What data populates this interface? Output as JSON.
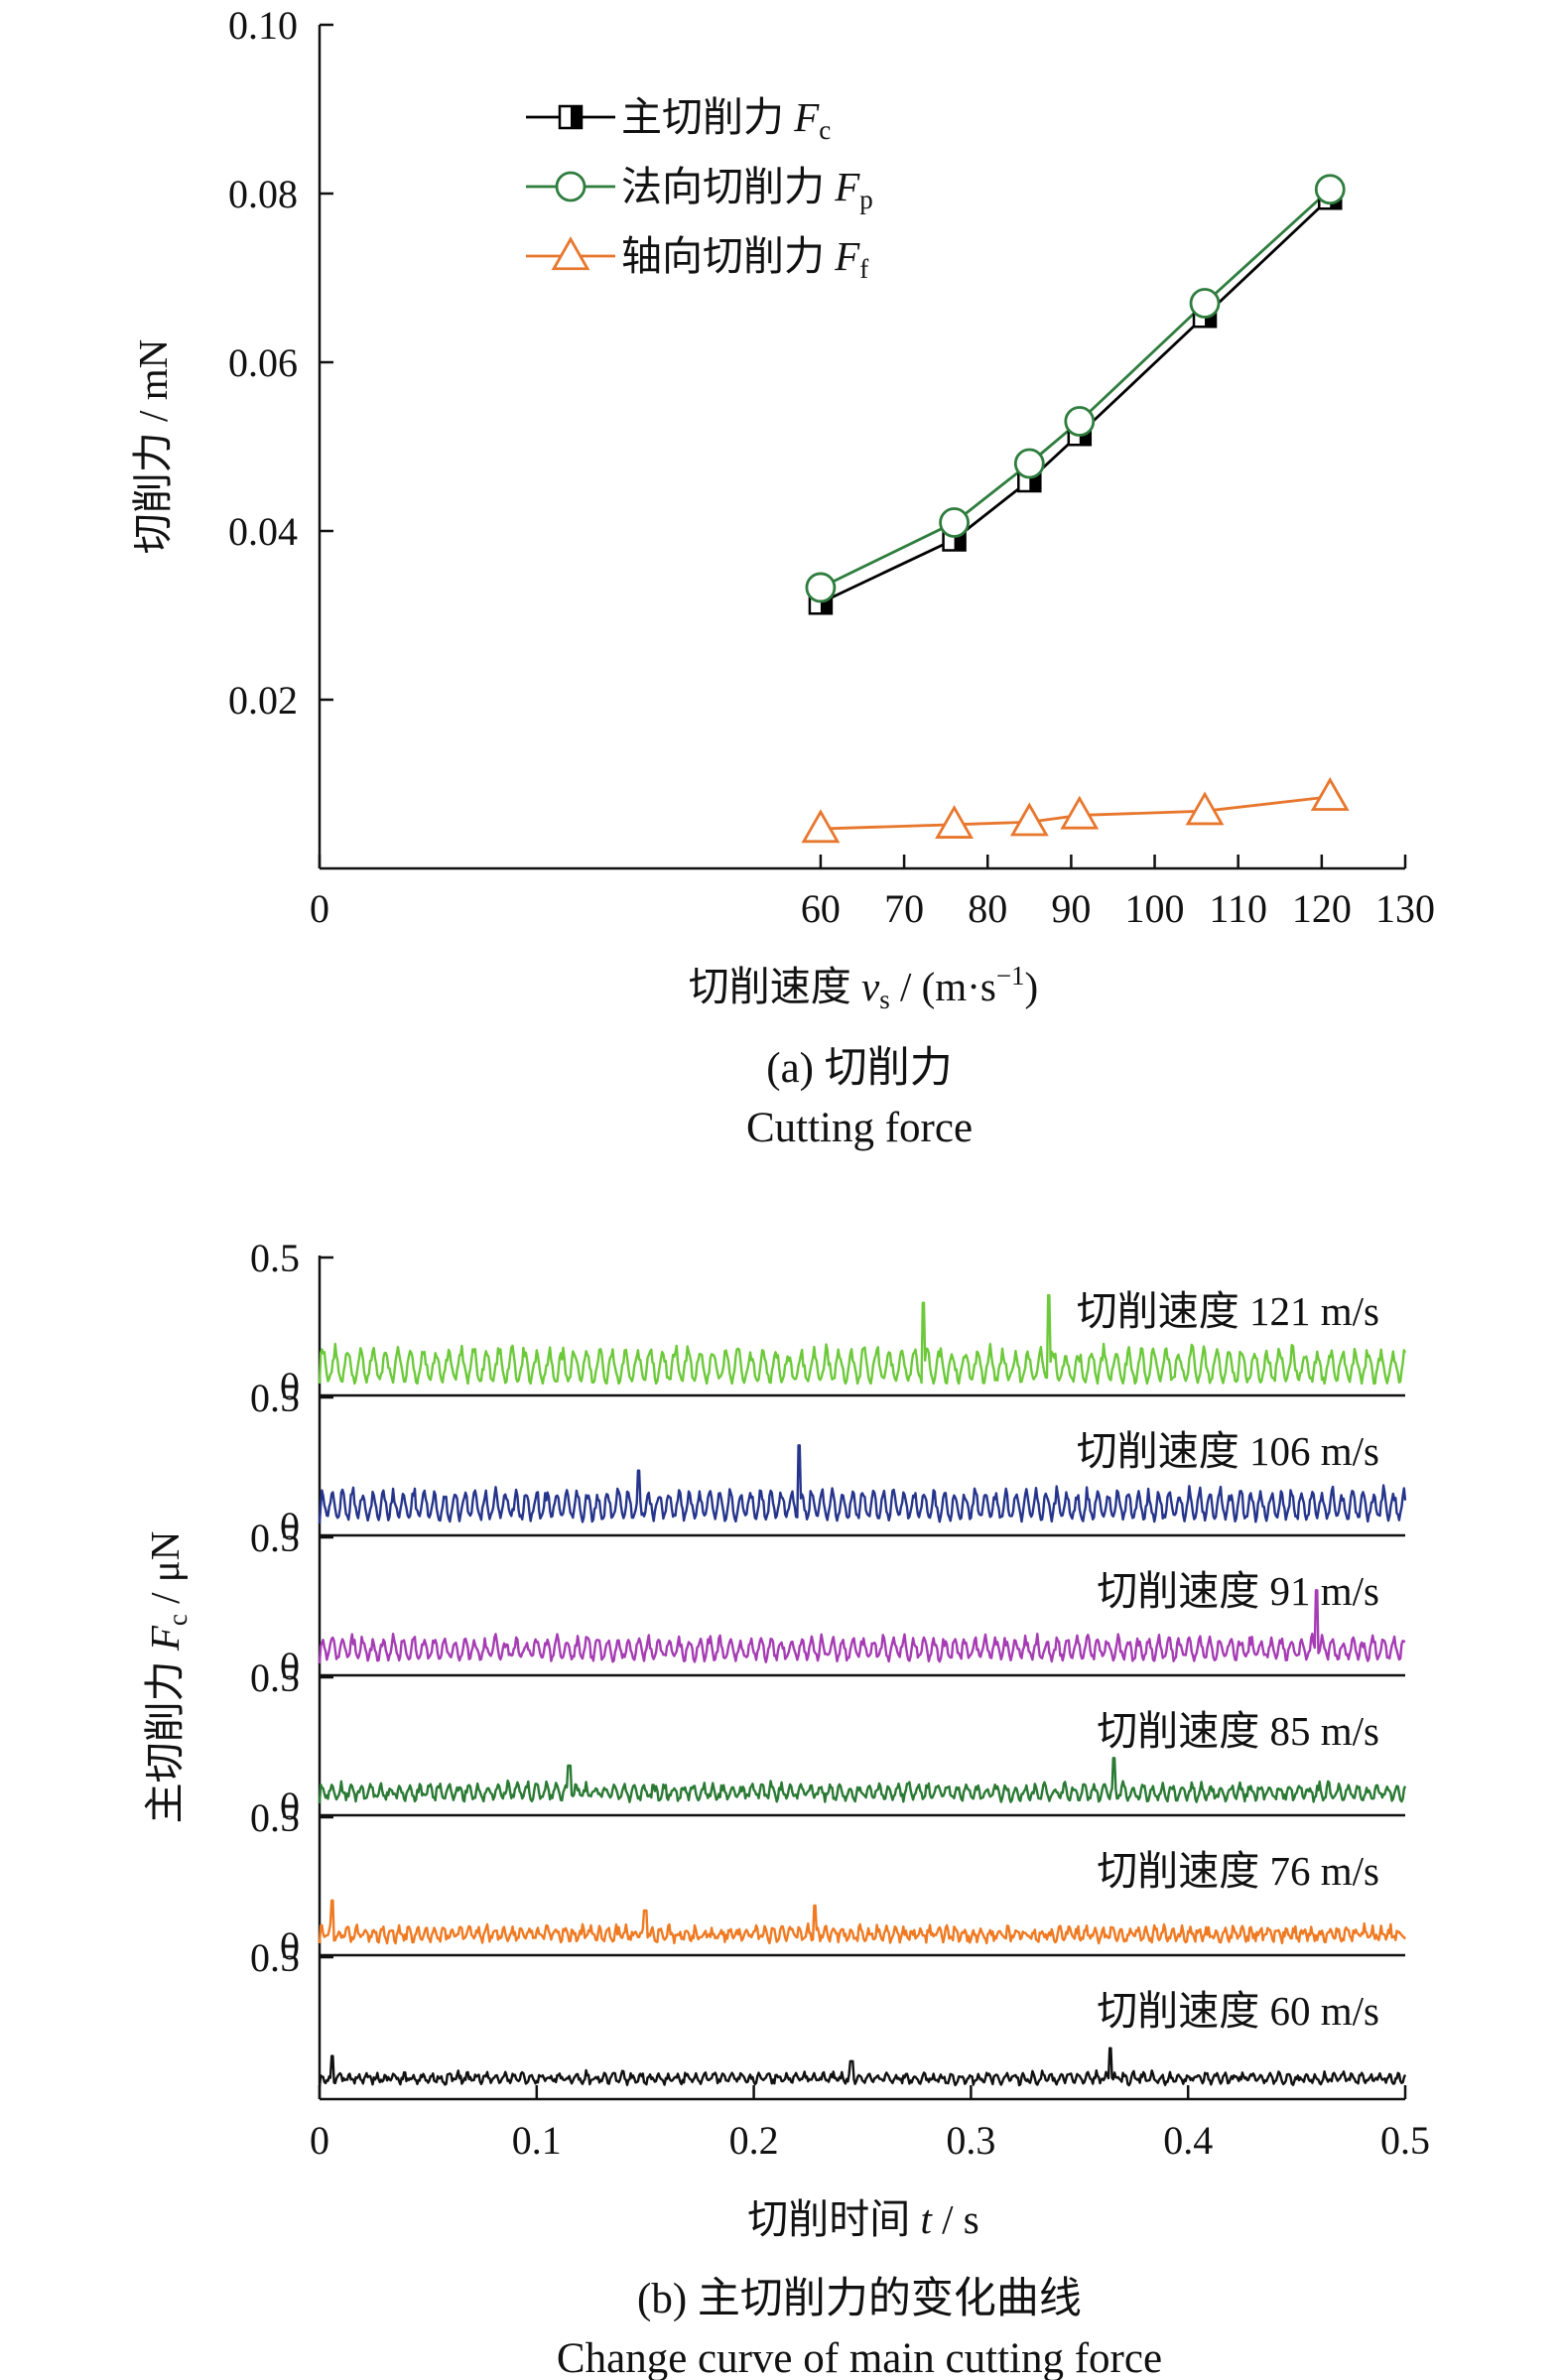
{
  "chart_data": [
    {
      "type": "line",
      "panel_id": "a",
      "caption_cn": "(a) 切削力",
      "caption_en": "Cutting force",
      "xlabel_main": "切削速度 ",
      "xlabel_var": "v",
      "xlabel_sub": "s",
      "xlabel_unit": " / (m·s",
      "xlabel_sup": "−1",
      "xlabel_close": ")",
      "ylabel": "切削力 / mN",
      "xlim": [
        0,
        130
      ],
      "ylim": [
        0,
        0.1
      ],
      "xticks": [
        0,
        60,
        70,
        80,
        90,
        100,
        110,
        120,
        130
      ],
      "xtick_labels": [
        "0",
        "60",
        "70",
        "80",
        "90",
        "100",
        "110",
        "120",
        "130"
      ],
      "yticks": [
        0.02,
        0.04,
        0.06,
        0.08,
        0.1
      ],
      "ytick_labels": [
        "0.02",
        "0.04",
        "0.06",
        "0.08",
        "0.10"
      ],
      "legend_position": "top-left",
      "x": [
        60,
        76,
        85,
        91,
        106,
        121
      ],
      "series": [
        {
          "name": "主切削力 ",
          "sym": "F",
          "sub": "c",
          "marker": "half-square",
          "color": "#000000",
          "values": [
            0.0315,
            0.039,
            0.046,
            0.0515,
            0.0655,
            0.0795
          ]
        },
        {
          "name": "法向切削力 ",
          "sym": "F",
          "sub": "p",
          "marker": "circle",
          "color": "#2e7d3e",
          "values": [
            0.0333,
            0.041,
            0.048,
            0.053,
            0.067,
            0.0805
          ]
        },
        {
          "name": "轴向切削力 ",
          "sym": "F",
          "sub": "f",
          "marker": "triangle",
          "color": "#e8772e",
          "values": [
            0.0047,
            0.0052,
            0.0055,
            0.0063,
            0.0068,
            0.0085
          ]
        }
      ]
    },
    {
      "type": "line",
      "panel_id": "b",
      "caption_cn": "(b) 主切削力的变化曲线",
      "caption_en": "Change curve of main cutting force",
      "xlabel_main": "切削时间 ",
      "xlabel_var": "t",
      "xlabel_unit": " / s",
      "ylabel_main": "主切削力 ",
      "ylabel_var": "F",
      "ylabel_sub": "c",
      "ylabel_unit": " / μN",
      "xlim": [
        0,
        0.5
      ],
      "ylim_each": [
        0,
        0.5
      ],
      "xticks": [
        0,
        0.1,
        0.2,
        0.3,
        0.4,
        0.5
      ],
      "xtick_labels": [
        "0",
        "0.1",
        "0.2",
        "0.3",
        "0.4",
        "0.5"
      ],
      "ytick_labels": [
        "0",
        "0.5"
      ],
      "series": [
        {
          "label": "切削速度 121 m/s",
          "speed": 121,
          "color": "#6cc93a",
          "base": 0.01,
          "amp": 0.14,
          "period": 0.0058,
          "noise": 0.03,
          "spikes": [
            [
              0.278,
              0.32
            ],
            [
              0.336,
              0.35
            ]
          ]
        },
        {
          "label": "切削速度 106 m/s",
          "speed": 106,
          "color": "#26358c",
          "base": 0.02,
          "amp": 0.12,
          "period": 0.0047,
          "noise": 0.03,
          "spikes": [
            [
              0.147,
              0.21
            ],
            [
              0.221,
              0.31
            ]
          ]
        },
        {
          "label": "切削速度 91 m/s",
          "speed": 91,
          "color": "#a63cb4",
          "base": 0.02,
          "amp": 0.09,
          "period": 0.0047,
          "noise": 0.03,
          "spikes": [
            [
              0.459,
              0.29
            ]
          ]
        },
        {
          "label": "切削速度 85 m/s",
          "speed": 85,
          "color": "#2a7a34",
          "base": 0.02,
          "amp": 0.06,
          "period": 0.0045,
          "noise": 0.03,
          "spikes": [
            [
              0.366,
              0.18
            ],
            [
              0.115,
              0.15
            ]
          ]
        },
        {
          "label": "切削速度 76 m/s",
          "speed": 76,
          "color": "#f07a22",
          "base": 0.015,
          "amp": 0.05,
          "period": 0.004,
          "noise": 0.035,
          "spikes": [
            [
              0.006,
              0.17
            ],
            [
              0.228,
              0.15
            ],
            [
              0.15,
              0.13
            ]
          ]
        },
        {
          "label": "切削速度 60 m/s",
          "speed": 60,
          "color": "#111111",
          "base": 0.02,
          "amp": 0.035,
          "period": 0.0042,
          "noise": 0.025,
          "spikes": [
            [
              0.006,
              0.12
            ],
            [
              0.364,
              0.15
            ],
            [
              0.245,
              0.1
            ]
          ]
        }
      ]
    }
  ]
}
